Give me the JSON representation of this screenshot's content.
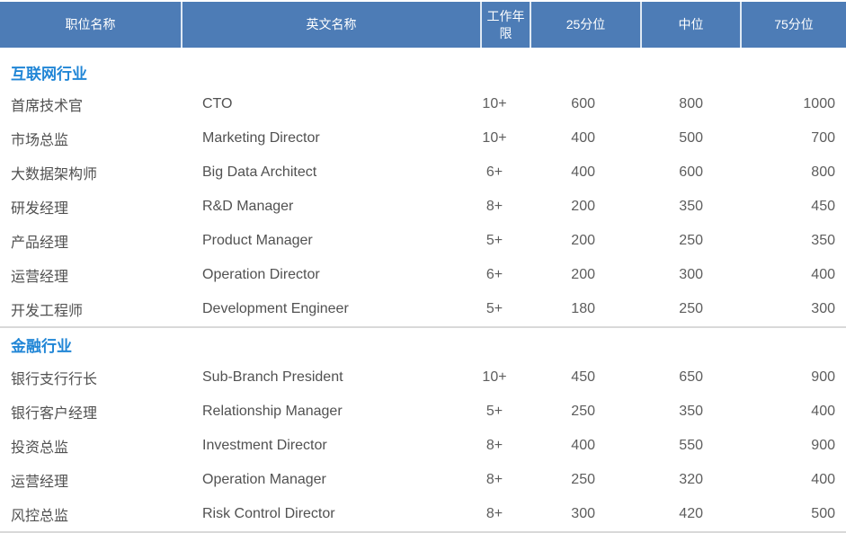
{
  "table": {
    "columns": [
      "职位名称",
      "英文名称",
      "工作年限",
      "25分位",
      "中位",
      "75分位"
    ],
    "colors": {
      "header_bg": "#4d7cb6",
      "header_text": "#ffffff",
      "section_title": "#2186d6",
      "body_text": "#515151",
      "divider": "#d9d9d9"
    }
  },
  "sections": [
    {
      "title": "互联网行业",
      "rows": [
        {
          "cn": "首席技术官",
          "en": "CTO",
          "years": "10+",
          "p25": "600",
          "med": "800",
          "p75": "1000"
        },
        {
          "cn": "市场总监",
          "en": "Marketing Director",
          "years": "10+",
          "p25": "400",
          "med": "500",
          "p75": "700"
        },
        {
          "cn": "大数据架构师",
          "en": "Big Data Architect",
          "years": "6+",
          "p25": "400",
          "med": "600",
          "p75": "800"
        },
        {
          "cn": "研发经理",
          "en": "R&D Manager",
          "years": "8+",
          "p25": "200",
          "med": "350",
          "p75": "450"
        },
        {
          "cn": "产品经理",
          "en": "Product Manager",
          "years": "5+",
          "p25": "200",
          "med": "250",
          "p75": "350"
        },
        {
          "cn": "运营经理",
          "en": "Operation Director",
          "years": "6+",
          "p25": "200",
          "med": "300",
          "p75": "400"
        },
        {
          "cn": "开发工程师",
          "en": "Development Engineer",
          "years": "5+",
          "p25": "180",
          "med": "250",
          "p75": "300"
        }
      ]
    },
    {
      "title": "金融行业",
      "rows": [
        {
          "cn": "银行支行行长",
          "en": "Sub-Branch President",
          "years": "10+",
          "p25": "450",
          "med": "650",
          "p75": "900"
        },
        {
          "cn": "银行客户经理",
          "en": "Relationship Manager",
          "years": "5+",
          "p25": "250",
          "med": "350",
          "p75": "400"
        },
        {
          "cn": "投资总监",
          "en": "Investment Director",
          "years": "8+",
          "p25": "400",
          "med": "550",
          "p75": "900"
        },
        {
          "cn": "运营经理",
          "en": "Operation Manager",
          "years": "8+",
          "p25": "250",
          "med": "320",
          "p75": "400"
        },
        {
          "cn": "风控总监",
          "en": "Risk Control Director",
          "years": "8+",
          "p25": "300",
          "med": "420",
          "p75": "500"
        }
      ]
    }
  ]
}
